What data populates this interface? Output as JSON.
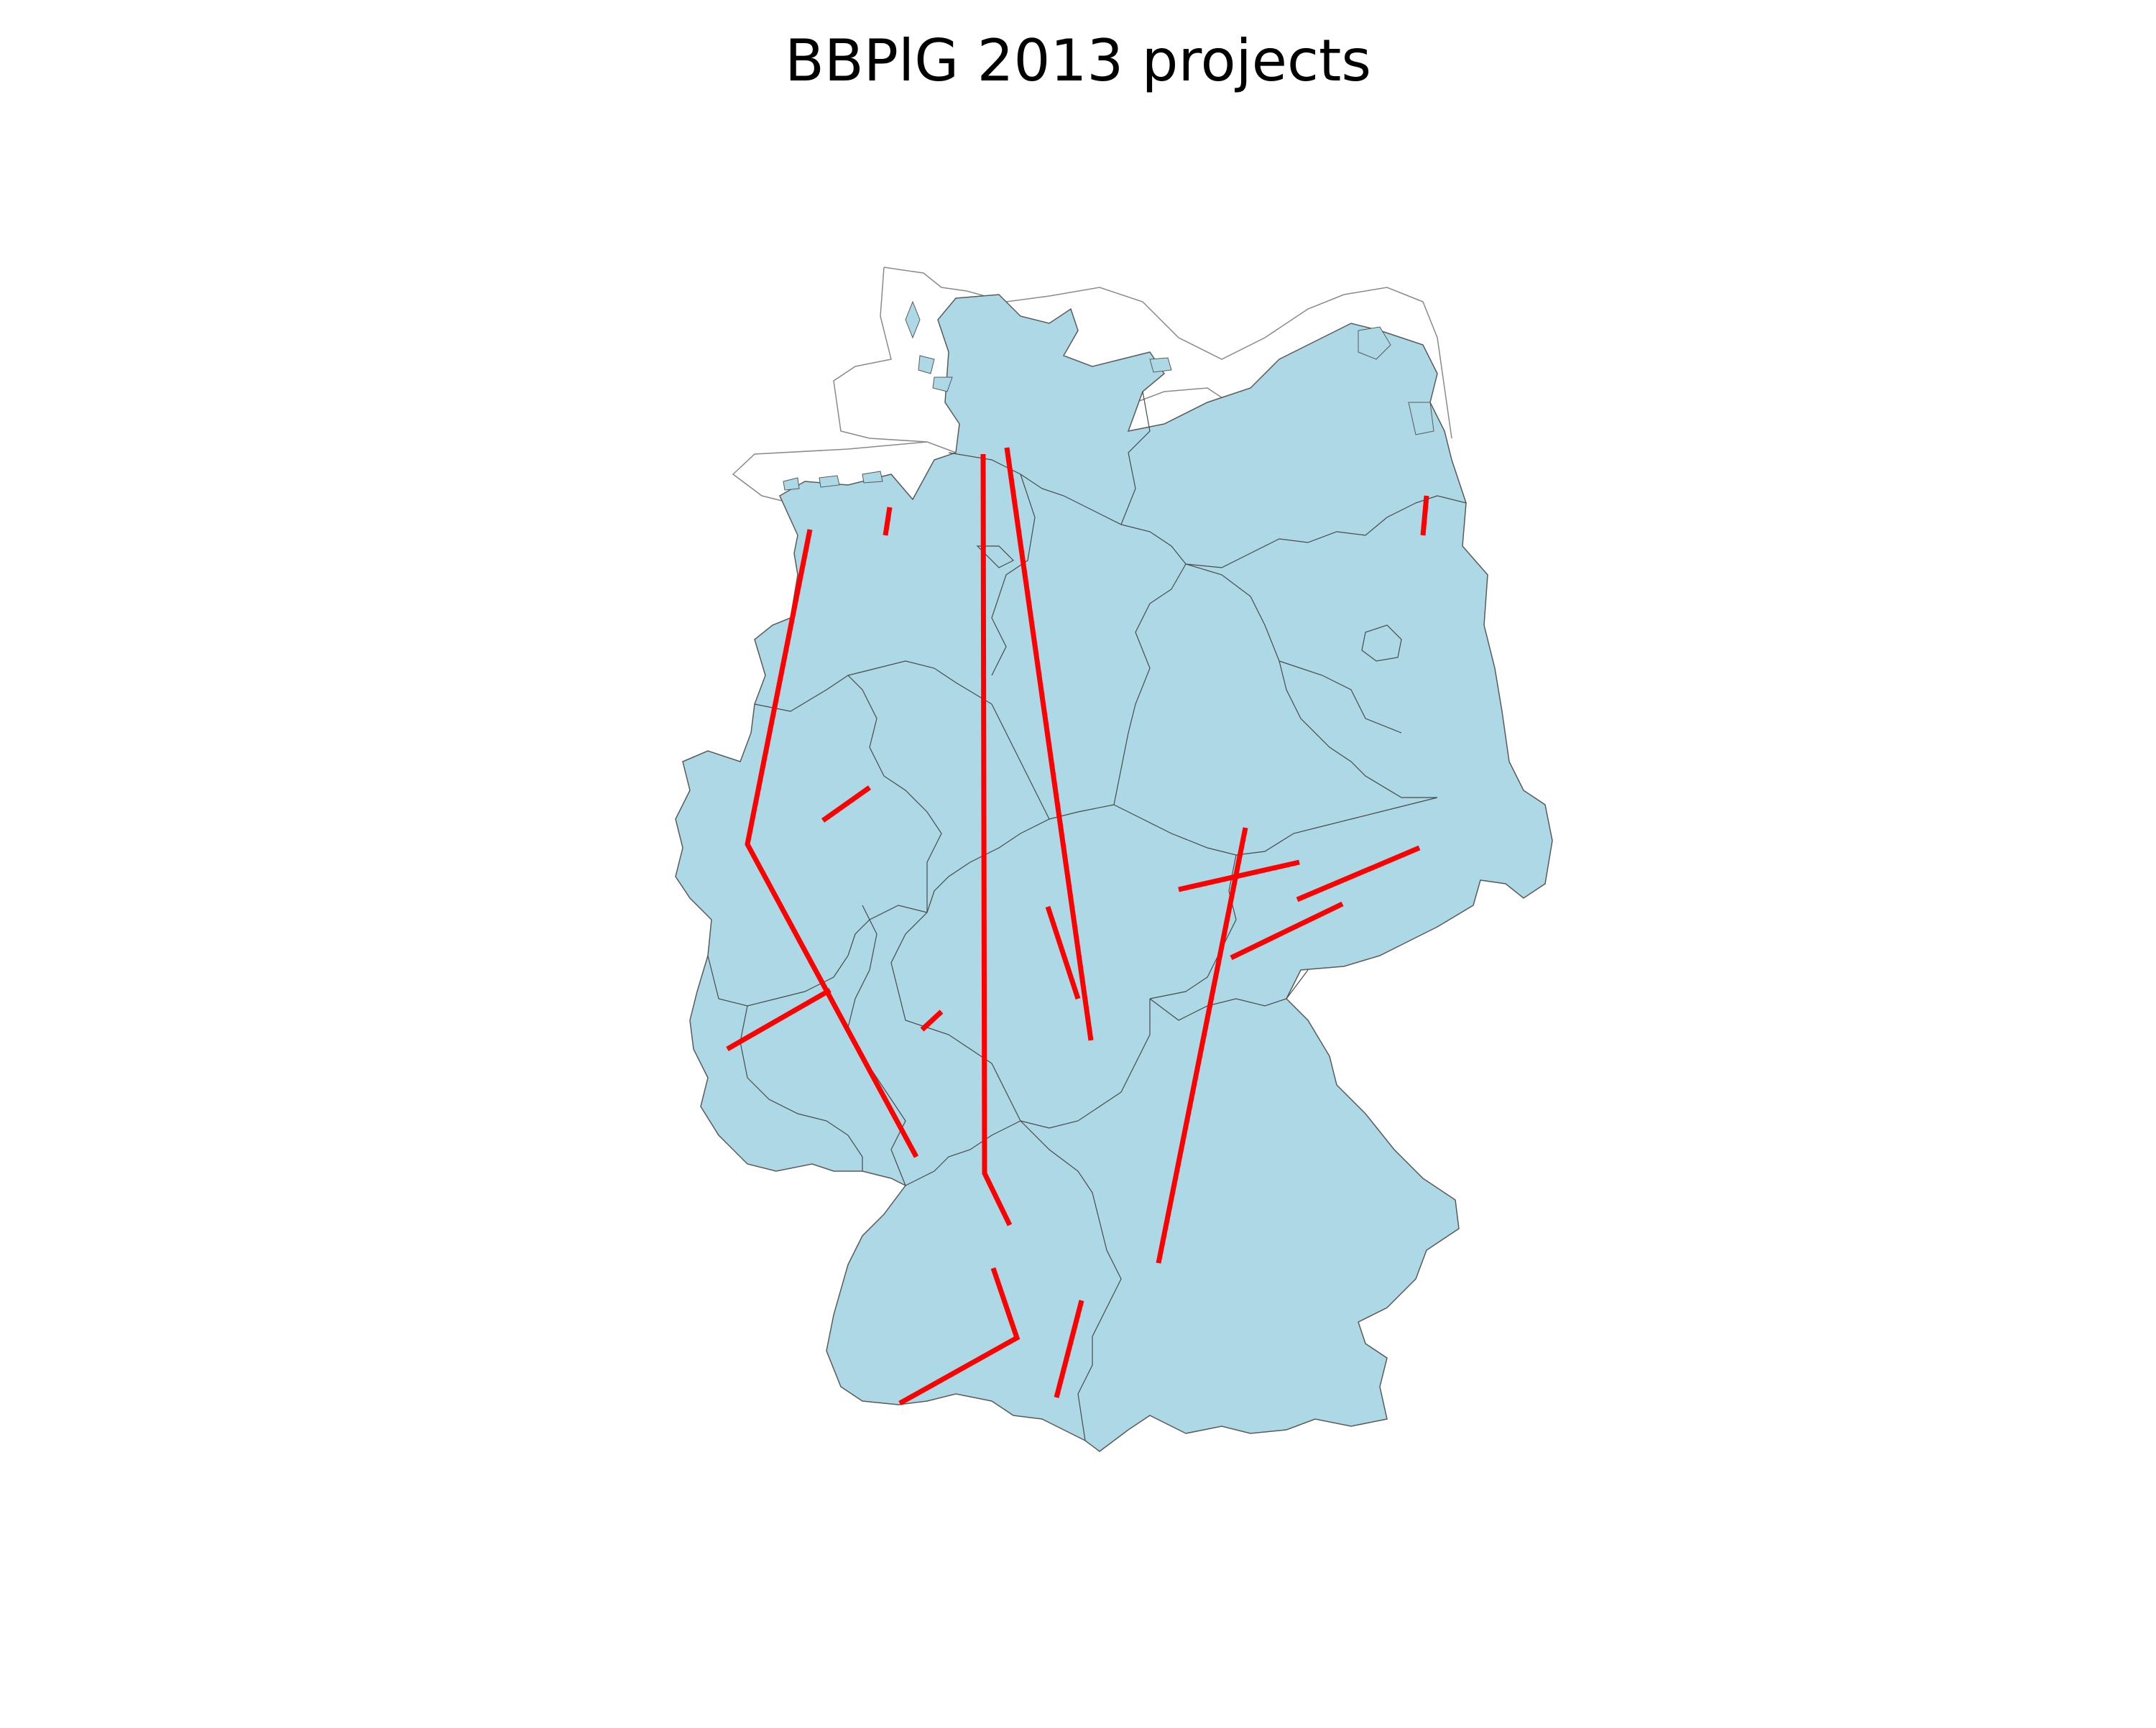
{
  "title": "BBPlG 2013 projects",
  "colors": {
    "land_fill": "#add8e6",
    "state_border": "#4a4a4a",
    "coast_outline": "#8a8a8a",
    "project_line": "#ff0000",
    "background": "#ffffff"
  },
  "projects": [
    {
      "id": "p01"
    },
    {
      "id": "p02"
    },
    {
      "id": "p03"
    },
    {
      "id": "p04"
    },
    {
      "id": "p05"
    },
    {
      "id": "p06"
    },
    {
      "id": "p07"
    },
    {
      "id": "p08"
    },
    {
      "id": "p09"
    },
    {
      "id": "p10"
    },
    {
      "id": "p11"
    },
    {
      "id": "p12"
    },
    {
      "id": "p13"
    },
    {
      "id": "p14"
    },
    {
      "id": "p15"
    },
    {
      "id": "p16"
    },
    {
      "id": "p17"
    },
    {
      "id": "p18"
    },
    {
      "id": "p19"
    },
    {
      "id": "p20"
    }
  ]
}
